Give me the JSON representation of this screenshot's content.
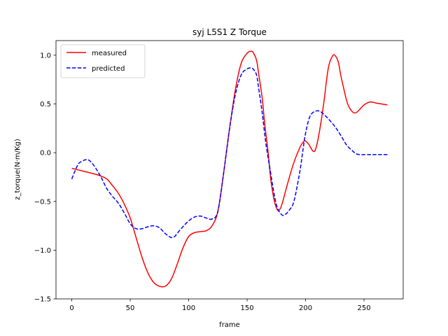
{
  "chart_data": {
    "type": "line",
    "title": "syj L5S1 Z Torque",
    "xlabel": "frame",
    "ylabel": "z_torque(N·m/Kg)",
    "xlim": [
      -13.5,
      283.5
    ],
    "ylim": [
      -1.5,
      1.15
    ],
    "xticks": [
      0,
      50,
      100,
      150,
      200,
      250
    ],
    "yticks": [
      -1.5,
      -1.0,
      -0.5,
      0.0,
      0.5,
      1.0
    ],
    "xtick_labels": [
      "0",
      "50",
      "100",
      "150",
      "200",
      "250"
    ],
    "ytick_labels": [
      "−1.5",
      "−1.0",
      "−0.5",
      "0.0",
      "0.5",
      "1.0"
    ],
    "grid": false,
    "legend_position": "top-left",
    "series": [
      {
        "name": "measured",
        "color": "#ff0000",
        "dash": "solid",
        "x": [
          0,
          10,
          20,
          25,
          30,
          35,
          40,
          45,
          50,
          55,
          60,
          65,
          70,
          75,
          80,
          85,
          90,
          95,
          100,
          105,
          110,
          115,
          120,
          125,
          130,
          135,
          140,
          145,
          150,
          153,
          155,
          158,
          160,
          163,
          165,
          168,
          170,
          173,
          176,
          178,
          180,
          185,
          190,
          195,
          198,
          200,
          203,
          206,
          208,
          210,
          213,
          216,
          218,
          220,
          223,
          225,
          228,
          230,
          233,
          236,
          240,
          243,
          246,
          250,
          255,
          260,
          265,
          270
        ],
        "y": [
          -0.16,
          -0.19,
          -0.22,
          -0.24,
          -0.27,
          -0.34,
          -0.42,
          -0.53,
          -0.67,
          -0.87,
          -1.07,
          -1.23,
          -1.33,
          -1.37,
          -1.37,
          -1.3,
          -1.15,
          -0.98,
          -0.86,
          -0.82,
          -0.81,
          -0.8,
          -0.75,
          -0.6,
          -0.2,
          0.25,
          0.65,
          0.92,
          1.02,
          1.04,
          1.03,
          0.95,
          0.8,
          0.55,
          0.3,
          0.0,
          -0.25,
          -0.48,
          -0.59,
          -0.58,
          -0.52,
          -0.3,
          -0.1,
          0.05,
          0.11,
          0.12,
          0.08,
          0.02,
          0.02,
          0.1,
          0.3,
          0.55,
          0.75,
          0.9,
          0.99,
          1.0,
          0.93,
          0.8,
          0.64,
          0.5,
          0.42,
          0.41,
          0.44,
          0.49,
          0.52,
          0.51,
          0.5,
          0.49
        ]
      },
      {
        "name": "predicted",
        "color": "#0000ff",
        "dash": "dashed",
        "x": [
          0,
          3,
          6,
          10,
          13,
          16,
          20,
          25,
          30,
          35,
          40,
          45,
          50,
          55,
          60,
          65,
          70,
          75,
          80,
          85,
          88,
          90,
          95,
          100,
          105,
          110,
          115,
          120,
          125,
          130,
          135,
          140,
          145,
          150,
          153,
          155,
          158,
          160,
          163,
          166,
          170,
          173,
          176,
          180,
          183,
          186,
          190,
          195,
          198,
          200,
          203,
          206,
          210,
          213,
          216,
          220,
          225,
          230,
          235,
          240,
          243,
          246,
          250,
          255,
          260,
          265,
          270
        ],
        "y": [
          -0.27,
          -0.18,
          -0.11,
          -0.08,
          -0.07,
          -0.09,
          -0.15,
          -0.25,
          -0.37,
          -0.45,
          -0.52,
          -0.62,
          -0.73,
          -0.78,
          -0.78,
          -0.76,
          -0.75,
          -0.77,
          -0.83,
          -0.87,
          -0.86,
          -0.83,
          -0.76,
          -0.7,
          -0.66,
          -0.65,
          -0.67,
          -0.68,
          -0.6,
          -0.2,
          0.25,
          0.6,
          0.8,
          0.86,
          0.87,
          0.86,
          0.8,
          0.65,
          0.4,
          0.1,
          -0.2,
          -0.42,
          -0.57,
          -0.64,
          -0.63,
          -0.59,
          -0.5,
          -0.2,
          0.05,
          0.2,
          0.35,
          0.41,
          0.43,
          0.42,
          0.39,
          0.34,
          0.27,
          0.18,
          0.08,
          0.02,
          -0.01,
          -0.02,
          -0.02,
          -0.02,
          -0.02,
          -0.02,
          -0.02
        ]
      }
    ]
  }
}
